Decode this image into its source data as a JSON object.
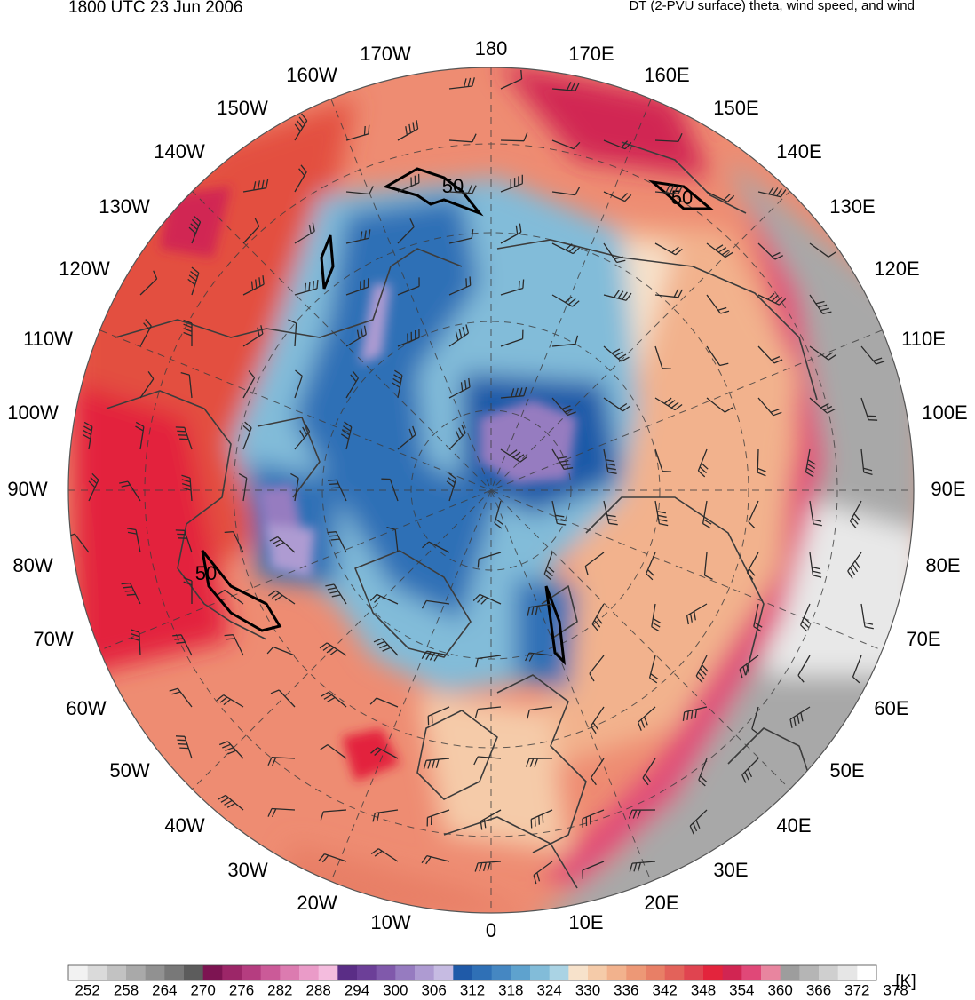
{
  "header": {
    "timestamp": "1800 UTC 23 Jun 2006",
    "product": "DT (2-PVU surface) theta, wind speed, and wind"
  },
  "longitude_labels": {
    "east": [
      "0",
      "10E",
      "20E",
      "30E",
      "40E",
      "50E",
      "60E",
      "70E",
      "80E",
      "90E",
      "100E",
      "110E",
      "120E",
      "130E",
      "140E",
      "150E",
      "160E",
      "170E",
      "180"
    ],
    "west": [
      "10W",
      "20W",
      "30W",
      "40W",
      "50W",
      "60W",
      "70W",
      "80W",
      "90W",
      "100W",
      "110W",
      "120W",
      "130W",
      "140W",
      "150W",
      "160W",
      "170W"
    ]
  },
  "contour_labels": [
    "50",
    "50",
    "50"
  ],
  "colorbar": {
    "unit": "[K]",
    "tick_labels": [
      "252",
      "258",
      "264",
      "270",
      "276",
      "282",
      "288",
      "294",
      "300",
      "306",
      "312",
      "318",
      "324",
      "330",
      "336",
      "342",
      "348",
      "354",
      "360",
      "366",
      "372",
      "378"
    ],
    "colors": [
      "#f2f2f2",
      "#dadada",
      "#c2c2c2",
      "#a9a9a9",
      "#919191",
      "#787878",
      "#5c5c5c",
      "#7d1452",
      "#9c2668",
      "#b53d80",
      "#cb5a98",
      "#dc7bb0",
      "#ea9bc8",
      "#f4bcde",
      "#5a2d86",
      "#6c3f98",
      "#8059ab",
      "#967bc0",
      "#ae9bd2",
      "#c6bbe2",
      "#1f5aa8",
      "#2f70b6",
      "#4587c2",
      "#5ea2ce",
      "#82bcd9",
      "#aad3e4",
      "#f7e2cb",
      "#f5cba9",
      "#f2b28d",
      "#ed9876",
      "#e87f66",
      "#e3625a",
      "#e04450",
      "#e3243c",
      "#d12552",
      "#e04878",
      "#e8859f",
      "#9d9d9d",
      "#b5b5b5",
      "#cfcfcf",
      "#e6e6e6",
      "#ffffff"
    ]
  },
  "colors": {
    "warm": "#e87f66",
    "cold": "#2f70b6",
    "coast": "#3c3c3c"
  }
}
